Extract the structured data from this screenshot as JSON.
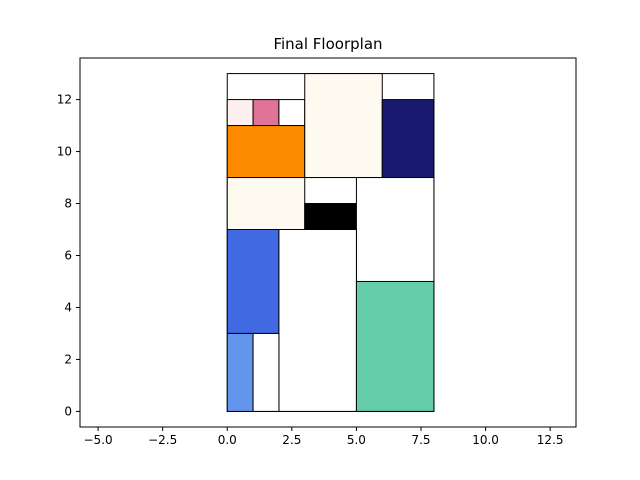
{
  "chart_data": {
    "type": "floorplan",
    "title": "Final Floorplan",
    "xlabel": "",
    "ylabel": "",
    "xlim": [
      -5.7,
      13.5
    ],
    "ylim": [
      -0.6,
      13.6
    ],
    "grid": false,
    "x_ticks": [
      -5.0,
      -2.5,
      0.0,
      2.5,
      5.0,
      7.5,
      10.0,
      12.5
    ],
    "x_tick_labels": [
      "−5.0",
      "−2.5",
      "0.0",
      "2.5",
      "5.0",
      "7.5",
      "10.0",
      "12.5"
    ],
    "y_ticks": [
      0,
      2,
      4,
      6,
      8,
      10,
      12
    ],
    "y_tick_labels": [
      "0",
      "2",
      "4",
      "6",
      "8",
      "10",
      "12"
    ],
    "rooms": [
      {
        "x": 0,
        "y": 9,
        "w": 8,
        "h": 4,
        "color": "#ffffff"
      },
      {
        "x": 0,
        "y": 0,
        "w": 8,
        "h": 9,
        "color": "#ffffff"
      },
      {
        "x": 0,
        "y": 11,
        "w": 1,
        "h": 1,
        "color": "#fff0f0"
      },
      {
        "x": 1,
        "y": 11,
        "w": 1,
        "h": 1,
        "color": "#e07398"
      },
      {
        "x": 2,
        "y": 11,
        "w": 1,
        "h": 1,
        "color": "#ffffff"
      },
      {
        "x": 0,
        "y": 9,
        "w": 3,
        "h": 2,
        "color": "#ff8c00"
      },
      {
        "x": 3,
        "y": 9,
        "w": 3,
        "h": 4,
        "color": "#fffaf0"
      },
      {
        "x": 6,
        "y": 9,
        "w": 2,
        "h": 3,
        "color": "#191970"
      },
      {
        "x": 0,
        "y": 7,
        "w": 3,
        "h": 2,
        "color": "#fffaf0"
      },
      {
        "x": 3,
        "y": 7,
        "w": 2,
        "h": 1,
        "color": "#000000"
      },
      {
        "x": 5,
        "y": 5,
        "w": 3,
        "h": 4,
        "color": "#ffffff"
      },
      {
        "x": 0,
        "y": 3,
        "w": 2,
        "h": 4,
        "color": "#4169e1"
      },
      {
        "x": 2,
        "y": 0,
        "w": 3,
        "h": 7,
        "color": "#ffffff"
      },
      {
        "x": 5,
        "y": 0,
        "w": 3,
        "h": 5,
        "color": "#66cdaa"
      },
      {
        "x": 0,
        "y": 0,
        "w": 1,
        "h": 3,
        "color": "#6495ed"
      },
      {
        "x": 1,
        "y": 0,
        "w": 1,
        "h": 3,
        "color": "#ffffff"
      }
    ],
    "edge_color": "#000000"
  }
}
